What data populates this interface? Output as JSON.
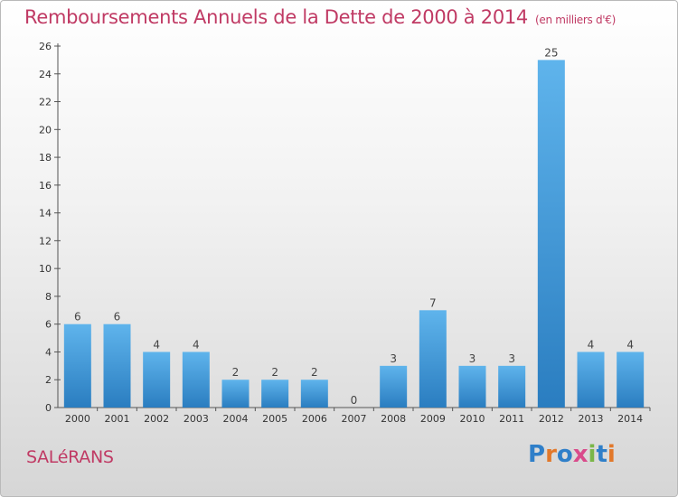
{
  "header": {
    "title": "Remboursements Annuels de la Dette de 2000 à 2014",
    "unit": "(en milliers d'€)"
  },
  "footer": {
    "commune": "SALéRANS",
    "logo_text": "Proxiti",
    "logo_colors": [
      "#2f7fc9",
      "#e2782a",
      "#2f7fc9",
      "#d94b8b",
      "#7ab648",
      "#2f7fc9",
      "#e2782a"
    ]
  },
  "colors": {
    "accent": "#c03a64",
    "bar_light": "#5fb4ec",
    "bar_dark": "#2a7dc0"
  },
  "chart_data": {
    "type": "bar",
    "categories": [
      "2000",
      "2001",
      "2002",
      "2003",
      "2004",
      "2005",
      "2006",
      "2007",
      "2008",
      "2009",
      "2010",
      "2011",
      "2012",
      "2013",
      "2014"
    ],
    "values": [
      6,
      6,
      4,
      4,
      2,
      2,
      2,
      0,
      3,
      7,
      3,
      3,
      25,
      4,
      4
    ],
    "value_labels": [
      "6",
      "6",
      "4",
      "4",
      "2",
      "2",
      "2",
      "0",
      "3",
      "7",
      "3",
      "3",
      "25",
      "4",
      "4"
    ],
    "title": "Remboursements Annuels de la Dette de 2000 à 2014",
    "xlabel": "",
    "ylabel": "",
    "ylim": [
      0,
      26
    ],
    "yticks": [
      "0",
      "2",
      "4",
      "6",
      "8",
      "10",
      "12",
      "14",
      "16",
      "18",
      "20",
      "22",
      "24",
      "26"
    ],
    "grid": false,
    "legend": "none"
  }
}
